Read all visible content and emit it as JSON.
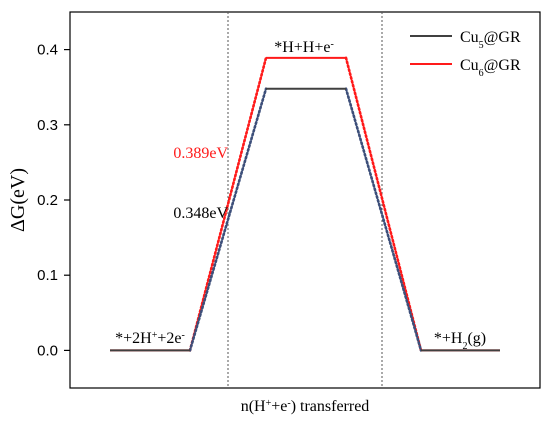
{
  "chart_data": {
    "type": "line",
    "xlabel_parts": [
      "n(H",
      "+",
      "+e",
      "-",
      ") transferred"
    ],
    "ylabel": "ΔG(eV)",
    "ylim": [
      -0.05,
      0.45
    ],
    "yticks": [
      0.0,
      0.1,
      0.2,
      0.3,
      0.4
    ],
    "ytick_labels": [
      "0.0",
      "0.1",
      "0.2",
      "0.3",
      "0.4"
    ],
    "grid": false,
    "legend_position": "top-right",
    "states": [
      {
        "id": "start",
        "label_parts": [
          [
            "*+2H",
            "n"
          ],
          [
            "+",
            "sup"
          ],
          [
            "+2e",
            "n"
          ],
          [
            "-",
            "sup"
          ]
        ]
      },
      {
        "id": "middle",
        "label_parts": [
          [
            "*H+H+e",
            "n"
          ],
          [
            "-",
            "sup"
          ]
        ]
      },
      {
        "id": "end",
        "label_parts": [
          [
            "*+H",
            "n"
          ],
          [
            "2",
            "sub"
          ],
          [
            "(g)",
            "n"
          ]
        ]
      }
    ],
    "series": [
      {
        "name_parts": [
          [
            "Cu",
            "n"
          ],
          [
            "5",
            "sub"
          ],
          [
            "@GR",
            "n"
          ]
        ],
        "color": "#404040",
        "connector_color": "#3d4f7a",
        "values": [
          0.0,
          0.348,
          0.0
        ]
      },
      {
        "name_parts": [
          [
            "Cu",
            "n"
          ],
          [
            "6",
            "sub"
          ],
          [
            "@GR",
            "n"
          ]
        ],
        "color": "#ff1a1a",
        "connector_color": "#ff1a1a",
        "values": [
          0.0,
          0.389,
          0.0
        ]
      }
    ],
    "annotations": [
      {
        "text": "0.389eV",
        "color": "#ff1a1a"
      },
      {
        "text": "0.348eV",
        "color": "#000000"
      }
    ]
  }
}
